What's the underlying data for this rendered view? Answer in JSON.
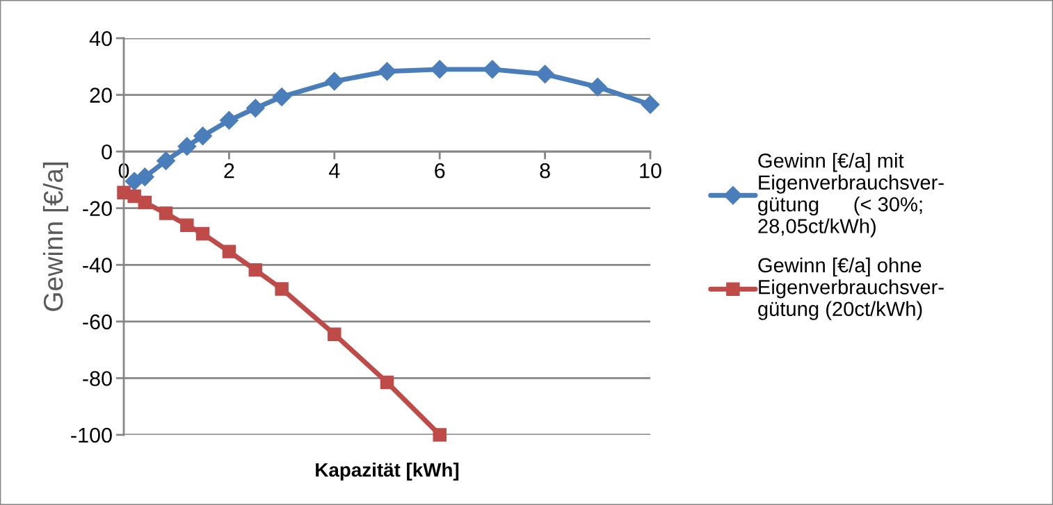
{
  "chart_data": {
    "type": "line",
    "xlabel": "Kapazität [kWh]",
    "ylabel": "Gewinn [€/a]",
    "xlim": [
      0,
      10
    ],
    "xticks": [
      0,
      2,
      4,
      6,
      8,
      10
    ],
    "ylim": [
      -100,
      40
    ],
    "yticks": [
      -100,
      -80,
      -60,
      -40,
      -20,
      0,
      20,
      40
    ],
    "grid": "y",
    "legend": "right",
    "series": [
      {
        "name": "Gewinn [€/a] mit\nEigenverbrauchsver-\ngütung      (< 30%;\n28,05ct/kWh)",
        "color": "#4a7ebb",
        "marker": "diamond",
        "x": [
          0.2,
          0.4,
          0.8,
          1.2,
          1.5,
          2,
          2.5,
          3,
          4,
          5,
          6,
          7,
          8,
          9,
          10
        ],
        "values": [
          -10.5,
          -9,
          -3.3,
          1.8,
          5.5,
          11,
          15.3,
          19.3,
          24.8,
          28.3,
          29,
          29,
          27.3,
          22.8,
          16.6
        ]
      },
      {
        "name": "Gewinn [€/a] ohne\nEigenverbrauchsver-\ngütung (20ct/kWh)",
        "color": "#be4b48",
        "marker": "square",
        "x": [
          0,
          0.2,
          0.4,
          0.8,
          1.2,
          1.5,
          2,
          2.5,
          3,
          4,
          5,
          6
        ],
        "values": [
          -14.5,
          -15.8,
          -18,
          -21.8,
          -26,
          -29,
          -35.3,
          -41.8,
          -48.5,
          -64.5,
          -81.5,
          -100
        ]
      }
    ]
  }
}
